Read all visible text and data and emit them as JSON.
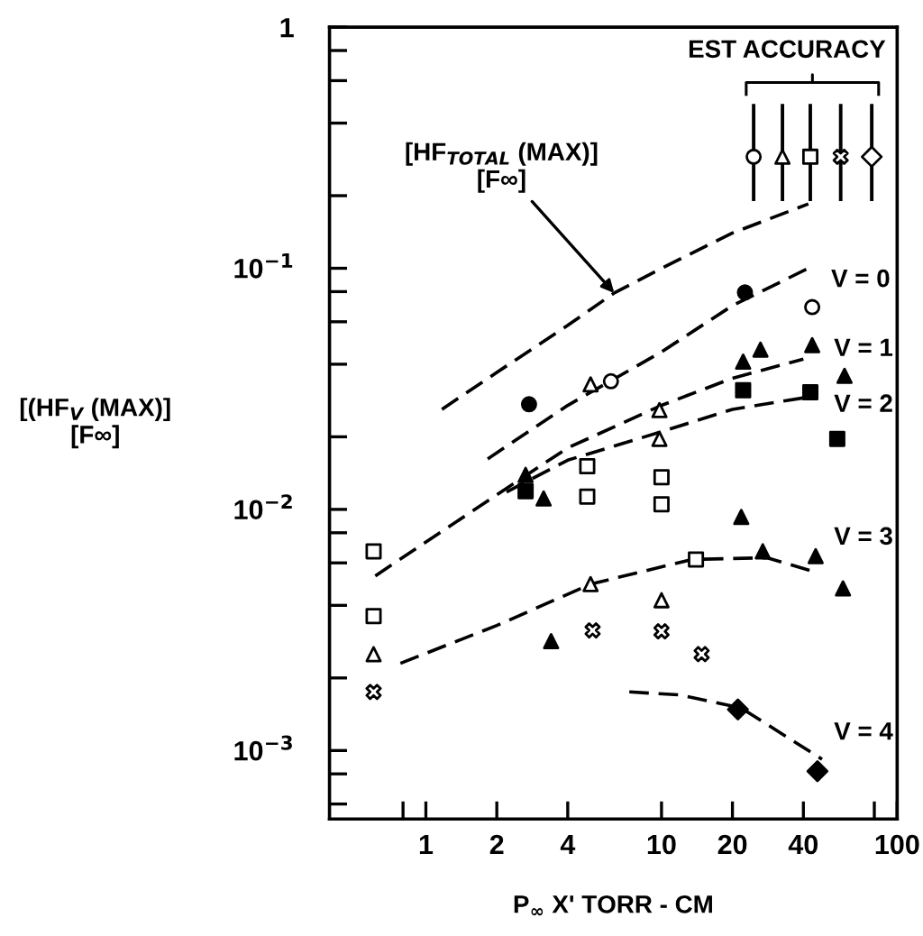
{
  "chart_data": {
    "type": "scatter",
    "xlabel": "P$_{∞}$ X' TORR - CM",
    "ylabel": "[(HF$_{V}$ (MAX)]\n[F∞]",
    "log": "xy",
    "xlim": [
      0.39,
      100
    ],
    "ylim": [
      0.00052,
      1
    ],
    "xticks": [
      {
        "value": 0.8,
        "label": null
      },
      1,
      2,
      4,
      10,
      20,
      40,
      {
        "value": 80,
        "label": null
      },
      100
    ],
    "yticks": [
      {
        "value": 0.0006,
        "label": null
      },
      {
        "value": 0.0008,
        "label": null
      },
      {
        "value": 0.001,
        "label": "10$^{−3}$"
      },
      {
        "value": 0.002,
        "label": null
      },
      {
        "value": 0.004,
        "label": null
      },
      {
        "value": 0.006,
        "label": null
      },
      {
        "value": 0.008,
        "label": null
      },
      {
        "value": 0.01,
        "label": "10$^{−2}$"
      },
      {
        "value": 0.02,
        "label": null
      },
      {
        "value": 0.04,
        "label": null
      },
      {
        "value": 0.06,
        "label": null
      },
      {
        "value": 0.08,
        "label": null
      },
      {
        "value": 0.1,
        "label": "10$^{−1}$"
      },
      {
        "value": 0.2,
        "label": null
      },
      {
        "value": 0.4,
        "label": null
      },
      {
        "value": 0.6,
        "label": null
      },
      {
        "value": 0.8,
        "label": null
      },
      1
    ],
    "series": [
      {
        "type": "line",
        "line_style": "dashed",
        "color": "#000000",
        "x": [
          1.17,
          2,
          4,
          6.3,
          10,
          20,
          42
        ],
        "values": [
          0.026,
          0.037,
          0.058,
          0.079,
          0.1,
          0.14,
          0.185
        ]
      },
      {
        "type": "line",
        "line_style": "dashed",
        "color": "#000000",
        "x": [
          1.83,
          4,
          10,
          20,
          42
        ],
        "values": [
          0.0162,
          0.027,
          0.045,
          0.07,
          0.1
        ]
      },
      {
        "type": "line",
        "line_style": "dashed",
        "color": "#000000",
        "x": [
          0.61,
          2,
          4,
          10,
          20,
          40
        ],
        "values": [
          0.0053,
          0.0115,
          0.018,
          0.027,
          0.035,
          0.042
        ]
      },
      {
        "type": "line",
        "line_style": "dashed",
        "color": "#000000",
        "x": [
          2.2,
          4,
          10,
          20,
          40
        ],
        "values": [
          0.0118,
          0.016,
          0.021,
          0.026,
          0.029
        ]
      },
      {
        "type": "line",
        "line_style": "dashed",
        "color": "#000000",
        "x": [
          0.78,
          2,
          5,
          13.5,
          28,
          45
        ],
        "values": [
          0.0023,
          0.0033,
          0.0049,
          0.0062,
          0.0063,
          0.0055
        ]
      },
      {
        "type": "line",
        "line_style": "dashed",
        "color": "#000000",
        "x": [
          7.3,
          12,
          21.8,
          48
        ],
        "values": [
          0.00175,
          0.0017,
          0.0015,
          0.00092
        ]
      },
      {
        "marker": "circle",
        "color": "#000000",
        "x": [
          2.74,
          22.6
        ],
        "values": [
          0.0273,
          0.0794
        ]
      },
      {
        "marker": "circle",
        "color": "#ffffff",
        "x": [
          43.6,
          6.1
        ],
        "values": [
          0.069,
          0.034
        ]
      },
      {
        "marker": "triangle",
        "color": "#000000",
        "x": [
          2.65,
          3.16,
          22.2,
          26.3,
          43.6,
          59.8,
          21.8,
          45.1,
          58.9,
          3.4,
          26.9
        ],
        "values": [
          0.0139,
          0.0111,
          0.041,
          0.046,
          0.048,
          0.0358,
          0.0093,
          0.0064,
          0.0047,
          0.00284,
          0.0067
        ]
      },
      {
        "marker": "triangle",
        "color": "#ffffff",
        "x": [
          5.0,
          9.8,
          9.8,
          0.6,
          5.0,
          10
        ],
        "values": [
          0.033,
          0.0258,
          0.0196,
          0.00251,
          0.0049,
          0.0042
        ]
      },
      {
        "marker": "square",
        "color": "#000000",
        "x": [
          2.65,
          22.2,
          42.8,
          55.7
        ],
        "values": [
          0.0119,
          0.0312,
          0.0306,
          0.0196
        ]
      },
      {
        "marker": "square",
        "color": "#ffffff",
        "x": [
          4.84,
          4.84,
          10,
          10,
          0.6,
          0.6,
          14.0
        ],
        "values": [
          0.0151,
          0.0113,
          0.0136,
          0.0105,
          0.0067,
          0.00361,
          0.0062
        ]
      },
      {
        "marker": "cross",
        "color": "#ffffff",
        "x": [
          0.6,
          5.1,
          10,
          14.8
        ],
        "values": [
          0.00175,
          0.00315,
          0.00312,
          0.00251
        ]
      },
      {
        "marker": "diamond",
        "color": "#000000",
        "x": [
          21.1,
          45.9
        ],
        "values": [
          0.00148,
          0.00082
        ]
      },
      {
        "marker": "circle",
        "color": "#ffffff",
        "x": [
          24.6
        ],
        "values": [
          0.29
        ],
        "errors": [
          [
            0.19,
            0.48
          ]
        ]
      },
      {
        "marker": "triangle",
        "color": "#ffffff",
        "x": [
          32.6
        ],
        "values": [
          0.29
        ],
        "errors": [
          [
            0.19,
            0.48
          ]
        ]
      },
      {
        "marker": "square",
        "color": "#ffffff",
        "x": [
          42.8
        ],
        "values": [
          0.29
        ],
        "errors": [
          [
            0.19,
            0.48
          ]
        ]
      },
      {
        "marker": "cross",
        "color": "#ffffff",
        "x": [
          57.6
        ],
        "values": [
          0.29
        ],
        "errors": [
          [
            0.19,
            0.48
          ]
        ]
      },
      {
        "marker": "diamond",
        "color": "#ffffff",
        "x": [
          78.0
        ],
        "values": [
          0.29
        ],
        "errors": [
          [
            0.19,
            0.48
          ]
        ]
      }
    ],
    "annotations": [
      "EST ACCURACY",
      {
        "text": "[HF$_{TOTAL}$ (MAX)]\n[F∞]",
        "x": 6.3,
        "y": 0.079
      },
      {
        "text": "V = 0",
        "x": 70,
        "y": 0.089
      },
      {
        "text": "V = 1",
        "x": 72,
        "y": 0.046
      },
      {
        "text": "V = 2",
        "x": 72,
        "y": 0.027
      },
      {
        "text": "V = 3",
        "x": 72,
        "y": 0.0076
      },
      {
        "text": "V = 4",
        "x": 72,
        "y": 0.00118
      }
    ]
  }
}
